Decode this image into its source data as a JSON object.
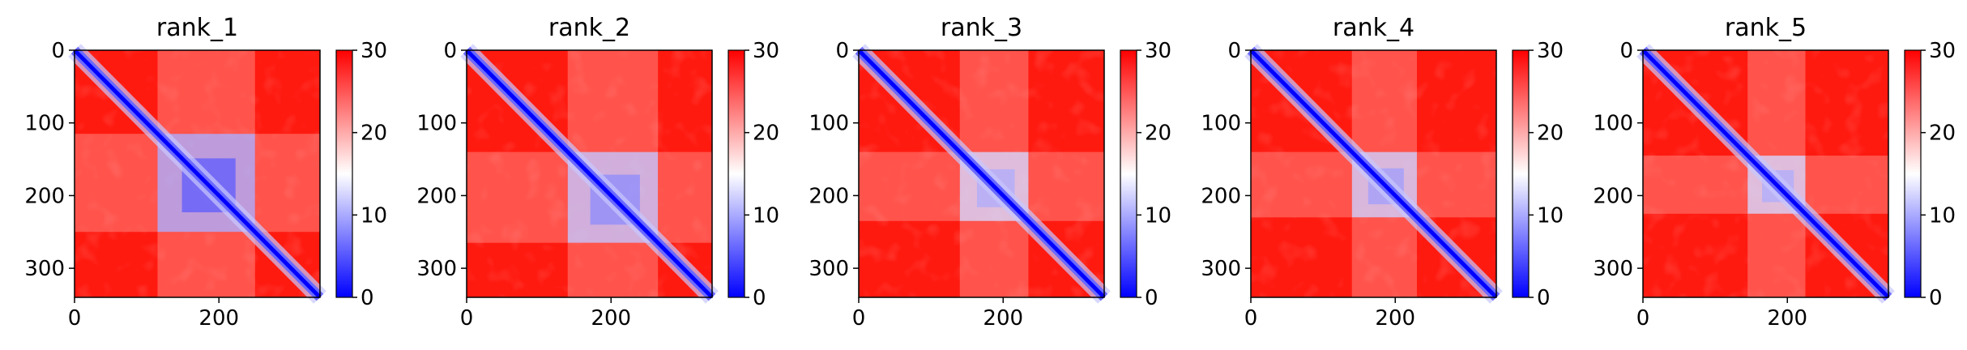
{
  "chart_data": {
    "type": "heatmap",
    "grid": false,
    "colormap": {
      "name": "bwr",
      "colors": [
        "#0000ff",
        "#ffffff",
        "#ff0000"
      ]
    },
    "colorbar": {
      "range": [
        0,
        30
      ],
      "ticks": [
        "0",
        "10",
        "20",
        "30"
      ]
    },
    "matrix_size": 340,
    "xlim": [
      0,
      340
    ],
    "ylim": [
      340,
      0
    ],
    "x_ticks": [
      "0",
      "200"
    ],
    "y_ticks": [
      "0",
      "100",
      "200",
      "300"
    ],
    "panels": [
      {
        "title": "rank_1",
        "domain_range": [
          115,
          250
        ],
        "domain_level": 0.6
      },
      {
        "title": "rank_2",
        "domain_range": [
          140,
          265
        ],
        "domain_level": 0.42
      },
      {
        "title": "rank_3",
        "domain_range": [
          140,
          235
        ],
        "domain_level": 0.3
      },
      {
        "title": "rank_4",
        "domain_range": [
          140,
          230
        ],
        "domain_level": 0.35
      },
      {
        "title": "rank_5",
        "domain_range": [
          145,
          225
        ],
        "domain_level": 0.3
      }
    ]
  }
}
